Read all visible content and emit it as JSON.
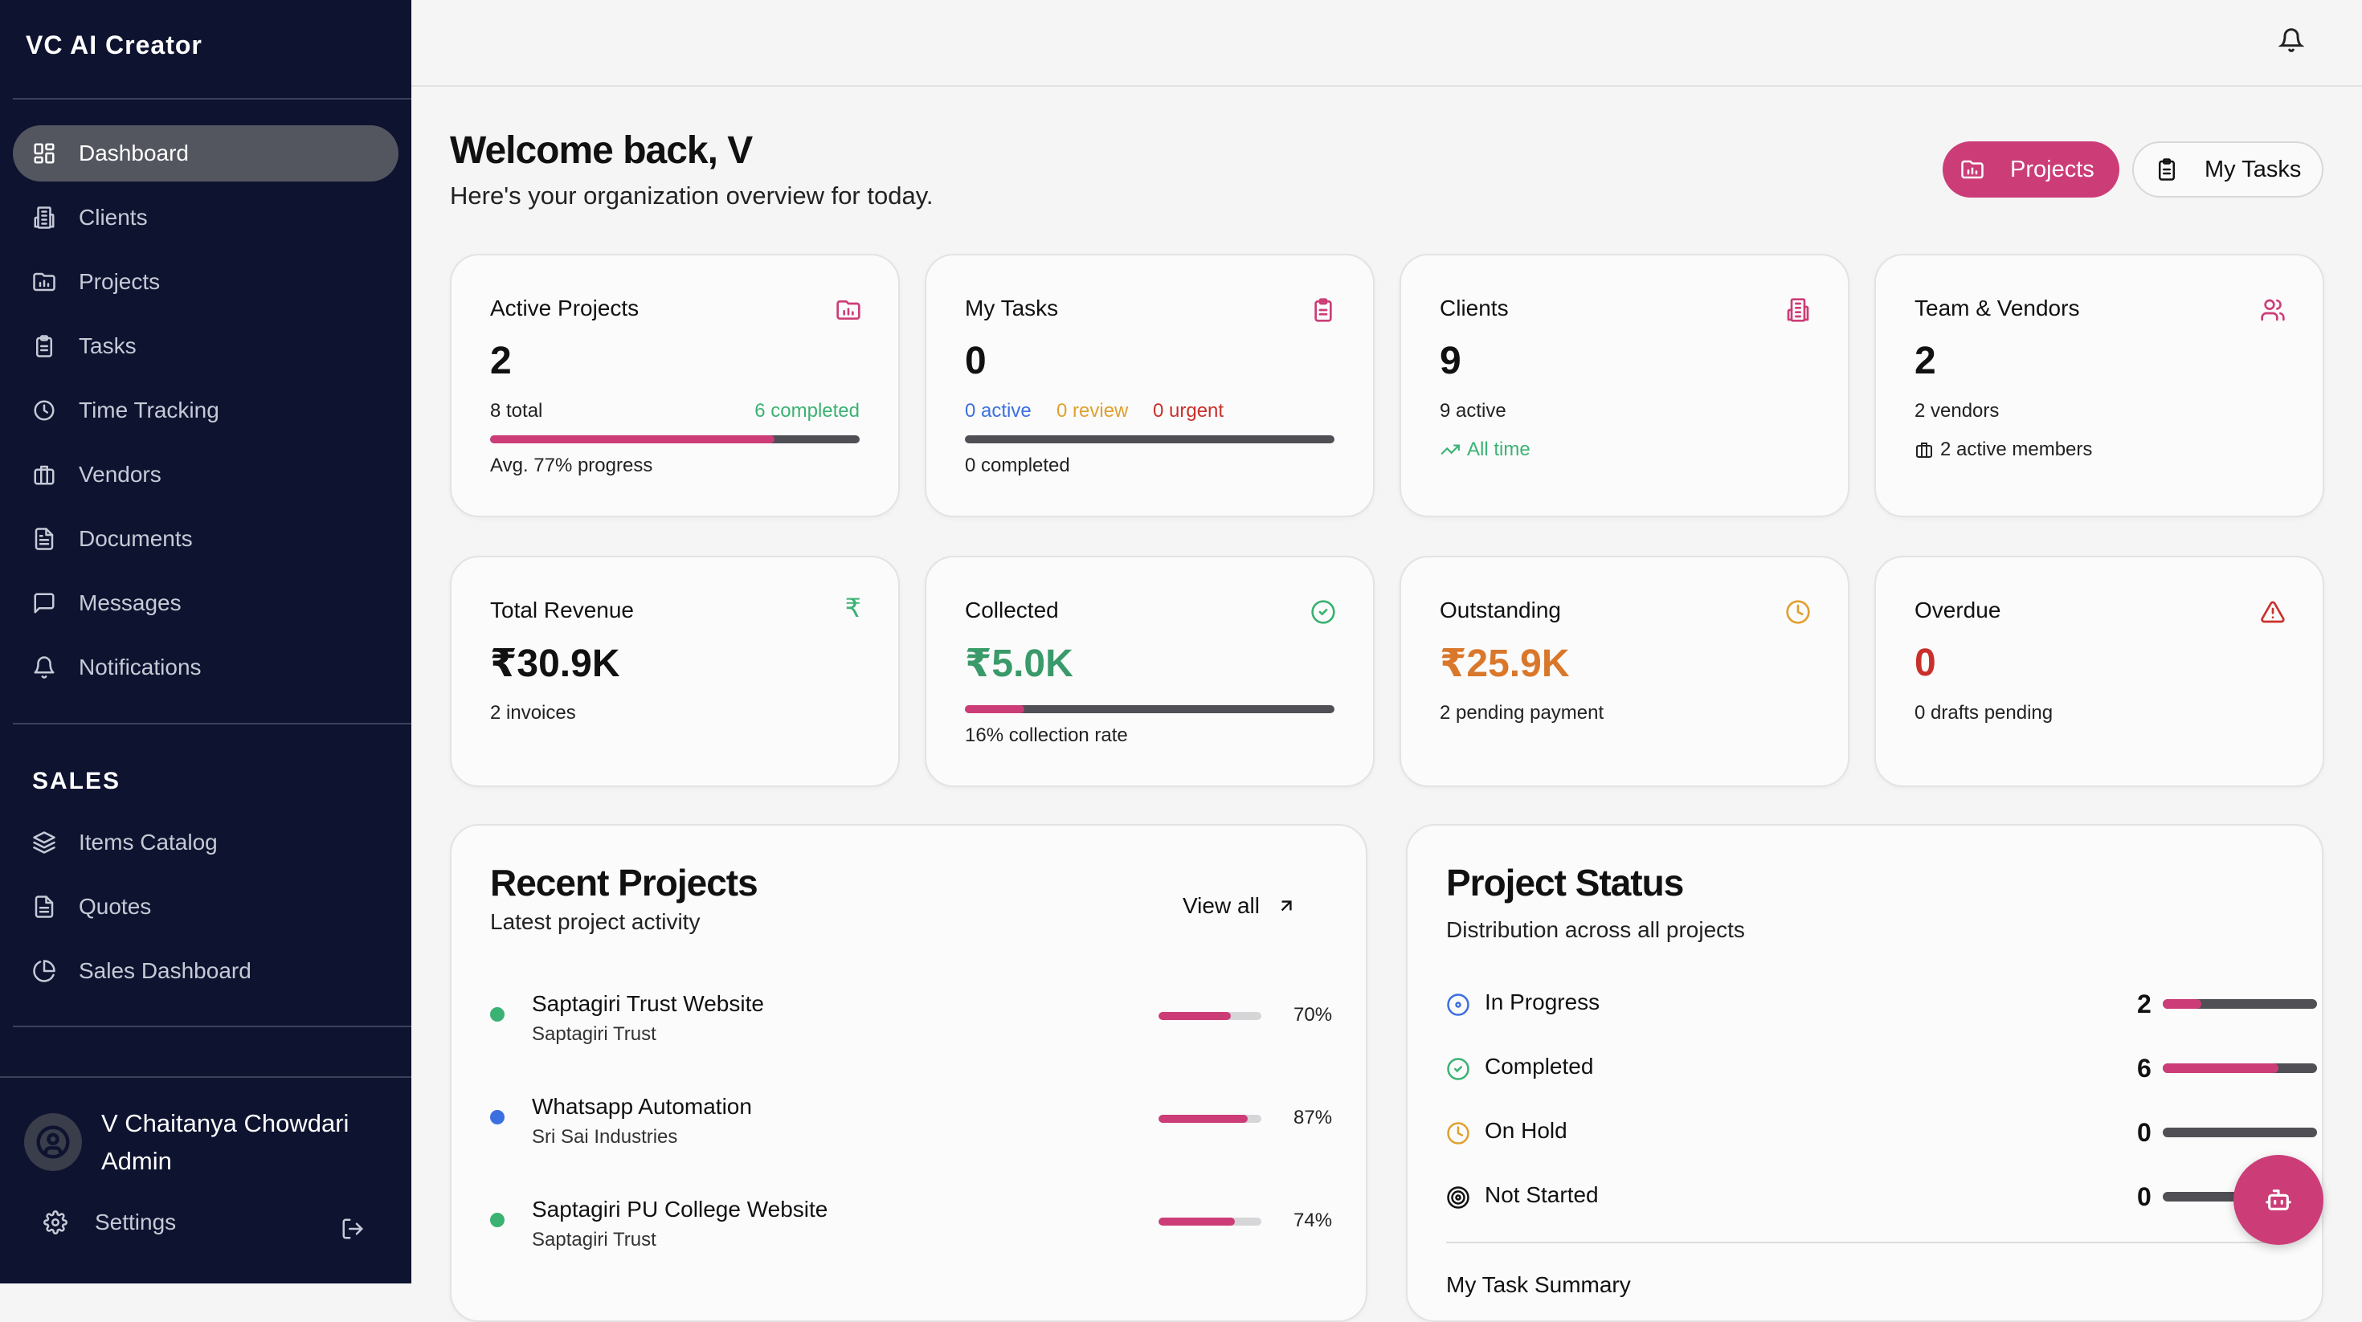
{
  "app": {
    "title": "VC AI Creator"
  },
  "sidebar": {
    "items": [
      {
        "label": "Dashboard",
        "icon": "grid-icon"
      },
      {
        "label": "Clients",
        "icon": "building-icon"
      },
      {
        "label": "Projects",
        "icon": "folder-chart-icon"
      },
      {
        "label": "Tasks",
        "icon": "clipboard-icon"
      },
      {
        "label": "Time Tracking",
        "icon": "clock-icon"
      },
      {
        "label": "Vendors",
        "icon": "briefcase-icon"
      },
      {
        "label": "Documents",
        "icon": "document-icon"
      },
      {
        "label": "Messages",
        "icon": "message-icon"
      },
      {
        "label": "Notifications",
        "icon": "bell-icon"
      }
    ],
    "sales_heading": "SALES",
    "sales_items": [
      {
        "label": "Items Catalog",
        "icon": "layers-icon"
      },
      {
        "label": "Quotes",
        "icon": "document-icon"
      },
      {
        "label": "Sales Dashboard",
        "icon": "pie-chart-icon"
      }
    ],
    "user": {
      "name": "V Chaitanya Chowdari",
      "role": "Admin"
    },
    "settings_label": "Settings"
  },
  "header": {
    "welcome": "Welcome back, V",
    "subtitle": "Here's your organization overview for today.",
    "projects_button": "Projects",
    "tasks_button": "My Tasks"
  },
  "stats": {
    "active_projects": {
      "title": "Active Projects",
      "value": "2",
      "total": "8 total",
      "completed": "6 completed",
      "progress": 0.77,
      "progress_text": "Avg. 77% progress"
    },
    "my_tasks": {
      "title": "My Tasks",
      "value": "0",
      "active": "0 active",
      "review": "0 review",
      "urgent": "0 urgent",
      "progress": 0,
      "completed": "0 completed"
    },
    "clients": {
      "title": "Clients",
      "value": "9",
      "active": "9 active",
      "trend": "All time"
    },
    "team": {
      "title": "Team & Vendors",
      "value": "2",
      "vendors": "2 vendors",
      "members": "2 active members"
    },
    "revenue": {
      "title": "Total Revenue",
      "value": "₹30.9K",
      "invoices": "2 invoices"
    },
    "collected": {
      "title": "Collected",
      "value": "₹5.0K",
      "progress": 0.16,
      "rate": "16% collection rate"
    },
    "outstanding": {
      "title": "Outstanding",
      "value": "₹25.9K",
      "pending": "2 pending payment"
    },
    "overdue": {
      "title": "Overdue",
      "value": "0",
      "drafts": "0 drafts pending"
    }
  },
  "recent_projects": {
    "title": "Recent Projects",
    "subtitle": "Latest project activity",
    "view_all": "View all",
    "items": [
      {
        "name": "Saptagiri Trust Website",
        "client": "Saptagiri Trust",
        "progress": 0.7,
        "percent": "70%",
        "dot_color": "#3bb273"
      },
      {
        "name": "Whatsapp Automation",
        "client": "Sri Sai Industries",
        "progress": 0.87,
        "percent": "87%",
        "dot_color": "#3b6fe0"
      },
      {
        "name": "Saptagiri PU College Website",
        "client": "Saptagiri Trust",
        "progress": 0.74,
        "percent": "74%",
        "dot_color": "#3bb273"
      }
    ]
  },
  "project_status": {
    "title": "Project Status",
    "subtitle": "Distribution across all projects",
    "rows": [
      {
        "label": "In Progress",
        "count": "2",
        "fraction": 0.25,
        "icon": "target-icon",
        "color": "#3b6fe0"
      },
      {
        "label": "Completed",
        "count": "6",
        "fraction": 0.75,
        "icon": "check-circle-icon",
        "color": "#3bb273"
      },
      {
        "label": "On Hold",
        "count": "0",
        "fraction": 0,
        "icon": "clock-icon",
        "color": "#e0a030"
      },
      {
        "label": "Not Started",
        "count": "0",
        "fraction": 0,
        "icon": "circle-dot-icon",
        "color": "#111111"
      }
    ],
    "next_section": "My Task Summary"
  },
  "colors": {
    "accent": "#cc3d78",
    "sidebar_bg": "#0e1330",
    "green": "#3bb273",
    "orange": "#d9772a",
    "red": "#c9302c",
    "blue": "#3b6fe0"
  }
}
